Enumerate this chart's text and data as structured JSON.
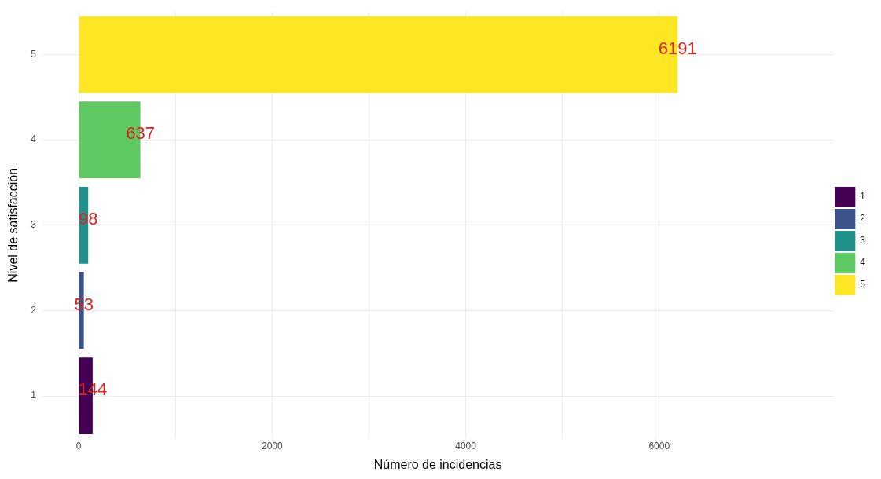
{
  "chart_data": {
    "type": "bar",
    "orientation": "horizontal",
    "xlabel": "Número de incidencias",
    "ylabel": "Nivel de satisfacción",
    "categories": [
      "5",
      "4",
      "3",
      "2",
      "1"
    ],
    "series": [
      {
        "name": "1",
        "color": "#440154",
        "values": [
          null,
          null,
          null,
          null,
          144
        ]
      },
      {
        "name": "2",
        "color": "#3b528b",
        "values": [
          null,
          null,
          null,
          53,
          null
        ]
      },
      {
        "name": "3",
        "color": "#21918c",
        "values": [
          null,
          null,
          98,
          null,
          null
        ]
      },
      {
        "name": "4",
        "color": "#5ec962",
        "values": [
          null,
          637,
          null,
          null,
          null
        ]
      },
      {
        "name": "5",
        "color": "#fde725",
        "values": [
          6191,
          null,
          null,
          null,
          null
        ]
      }
    ],
    "xlim": [
      -376,
      7800
    ],
    "xticks": [
      0,
      {
        "value": 1000,
        "label": null
      },
      2000,
      {
        "value": 3000,
        "label": null
      },
      4000,
      {
        "value": 5000,
        "label": null
      },
      6000
    ],
    "grid": true,
    "legend": "right",
    "data_labels": true
  }
}
